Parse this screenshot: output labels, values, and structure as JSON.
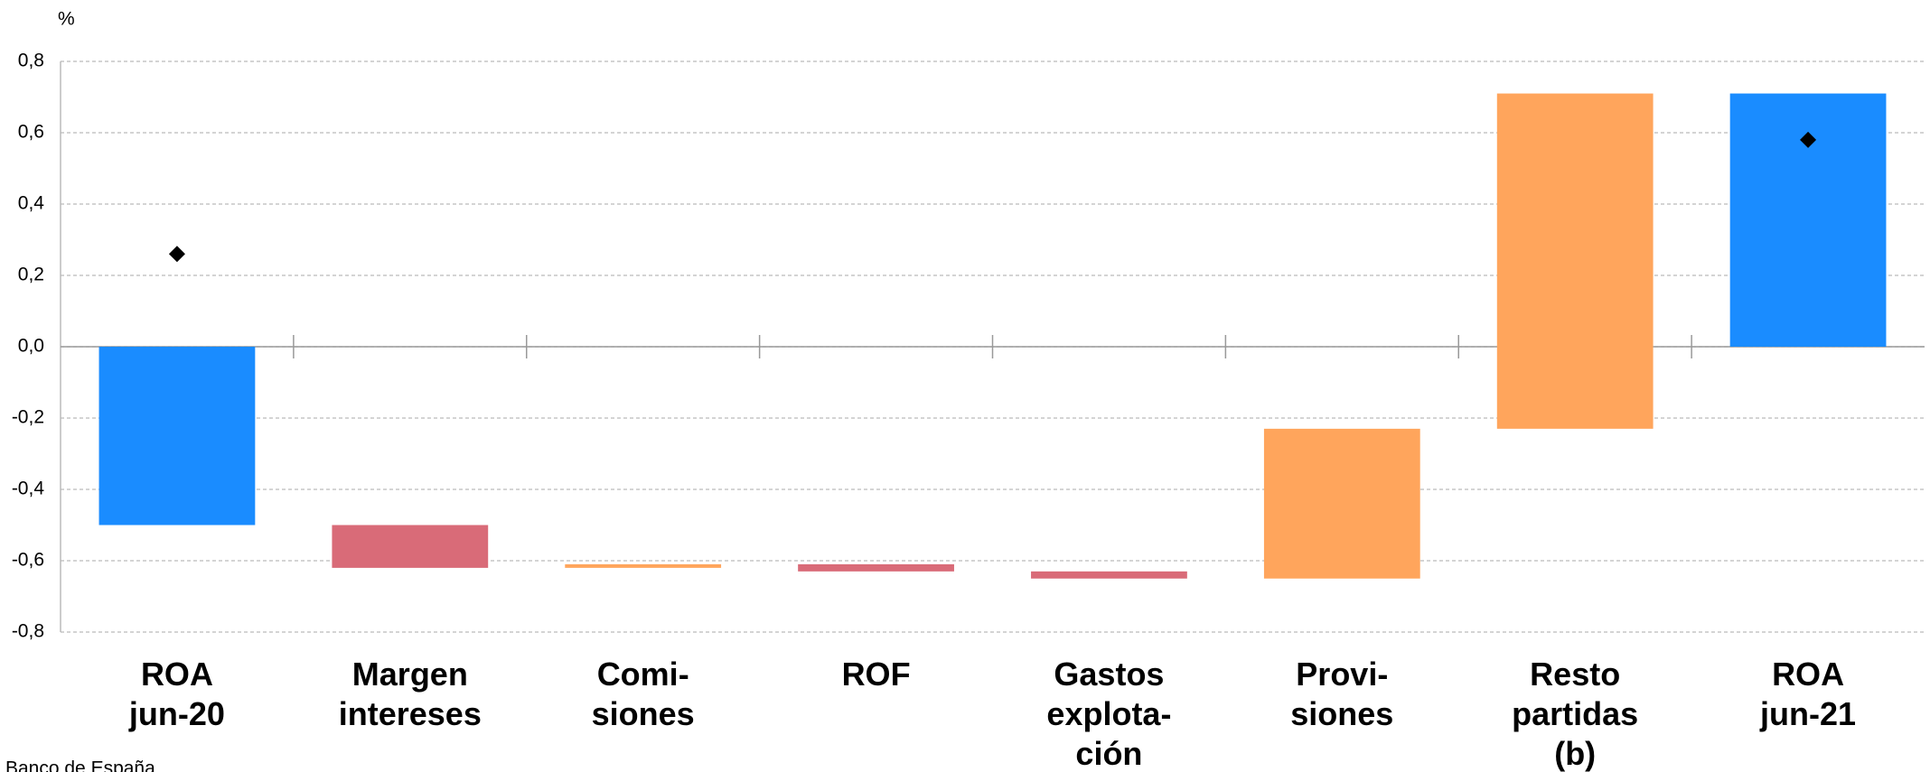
{
  "chart_data": {
    "type": "waterfall",
    "unit": "%",
    "source": "Banco de España",
    "categories": [
      [
        "ROA",
        "jun-20"
      ],
      [
        "Margen",
        "intereses"
      ],
      [
        "Comi-",
        "siones"
      ],
      [
        "ROF"
      ],
      [
        "Gastos",
        "explota-",
        "ción"
      ],
      [
        "Provi-",
        "siones"
      ],
      [
        "Resto",
        "partidas",
        "(b)"
      ],
      [
        "ROA",
        "jun-21"
      ]
    ],
    "values": [
      -0.5,
      -0.12,
      0.01,
      -0.02,
      -0.02,
      0.42,
      0.94,
      0.71
    ],
    "kinds": [
      "total",
      "delta",
      "delta",
      "delta",
      "delta",
      "delta",
      "delta",
      "total"
    ],
    "colors": {
      "total": "#1a8cff",
      "increase": "#ffa55c",
      "decrease": "#d96b78"
    },
    "markers": {
      "color": "#000000",
      "values": [
        0.26,
        null,
        null,
        null,
        null,
        null,
        null,
        0.58
      ]
    },
    "ylim": [
      -0.8,
      0.8
    ],
    "yticks": [
      {
        "value": -0.8,
        "label": "-0,8"
      },
      {
        "value": -0.6,
        "label": "-0,6"
      },
      {
        "value": -0.4,
        "label": "-0,4"
      },
      {
        "value": -0.2,
        "label": "-0,2"
      },
      {
        "value": 0,
        "label": "0,0"
      },
      {
        "value": 0.2,
        "label": "0,2"
      },
      {
        "value": 0.4,
        "label": "0,4"
      },
      {
        "value": 0.6,
        "label": "0,6"
      },
      {
        "value": 0.8,
        "label": "0,8"
      }
    ],
    "grid": true
  }
}
